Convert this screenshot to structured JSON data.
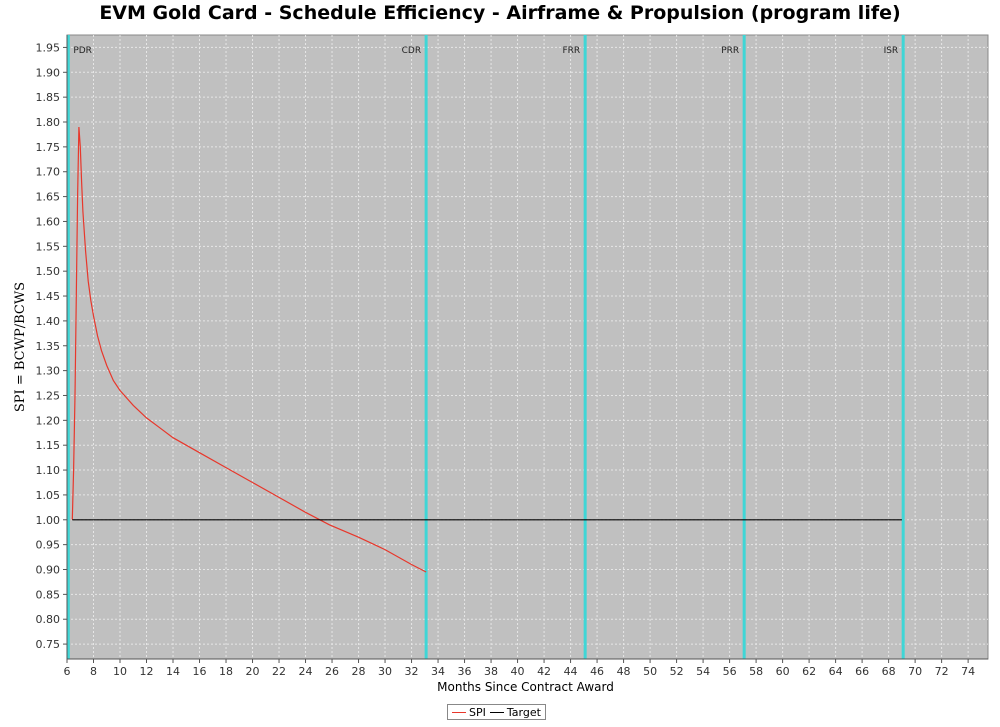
{
  "chart_data": {
    "type": "line",
    "title": "EVM Gold Card - Schedule Efficiency - Airframe & Propulsion (program life)",
    "xlabel": "Months Since Contract Award",
    "ylabel": "SPI = BCWP/BCWS",
    "xlim": [
      6,
      75.5
    ],
    "ylim": [
      0.72,
      1.975
    ],
    "xticks": [
      6,
      8,
      10,
      12,
      14,
      16,
      18,
      20,
      22,
      24,
      26,
      28,
      30,
      32,
      34,
      36,
      38,
      40,
      42,
      44,
      46,
      48,
      50,
      52,
      54,
      56,
      58,
      60,
      62,
      64,
      66,
      68,
      70,
      72,
      74
    ],
    "yticks": [
      0.75,
      0.8,
      0.85,
      0.9,
      0.95,
      1.0,
      1.05,
      1.1,
      1.15,
      1.2,
      1.25,
      1.3,
      1.35,
      1.4,
      1.45,
      1.5,
      1.55,
      1.6,
      1.65,
      1.7,
      1.75,
      1.8,
      1.85,
      1.9,
      1.95
    ],
    "grid": true,
    "legend_position": "bottom-center",
    "series": [
      {
        "name": "SPI",
        "color": "#e8372b",
        "x": [
          6.4,
          6.5,
          6.6,
          6.7,
          6.8,
          6.9,
          7.0,
          7.1,
          7.2,
          7.4,
          7.6,
          7.8,
          8.0,
          8.3,
          8.6,
          9.0,
          9.5,
          10.0,
          11.0,
          12.0,
          13.0,
          14.0,
          16.0,
          18.0,
          20.0,
          22.0,
          24.0,
          25.8,
          28.0,
          30.0,
          32.0,
          33.1
        ],
        "y": [
          1.0,
          1.1,
          1.25,
          1.45,
          1.65,
          1.79,
          1.75,
          1.68,
          1.62,
          1.54,
          1.48,
          1.44,
          1.41,
          1.37,
          1.34,
          1.31,
          1.28,
          1.26,
          1.23,
          1.205,
          1.185,
          1.165,
          1.135,
          1.105,
          1.075,
          1.045,
          1.015,
          0.99,
          0.965,
          0.94,
          0.91,
          0.895
        ]
      },
      {
        "name": "Target",
        "color": "#000000",
        "x": [
          6.4,
          69.0
        ],
        "y": [
          1.0,
          1.0
        ]
      }
    ],
    "milestones": [
      {
        "label": "PDR",
        "x": 6.1
      },
      {
        "label": "CDR",
        "x": 33.1
      },
      {
        "label": "FRR",
        "x": 45.1
      },
      {
        "label": "PRR",
        "x": 57.1
      },
      {
        "label": "ISR",
        "x": 69.1
      }
    ],
    "colors": {
      "plot_background": "#c0c0c0",
      "grid": "#e6e6e6",
      "milestone": "#3fd6d6"
    }
  }
}
